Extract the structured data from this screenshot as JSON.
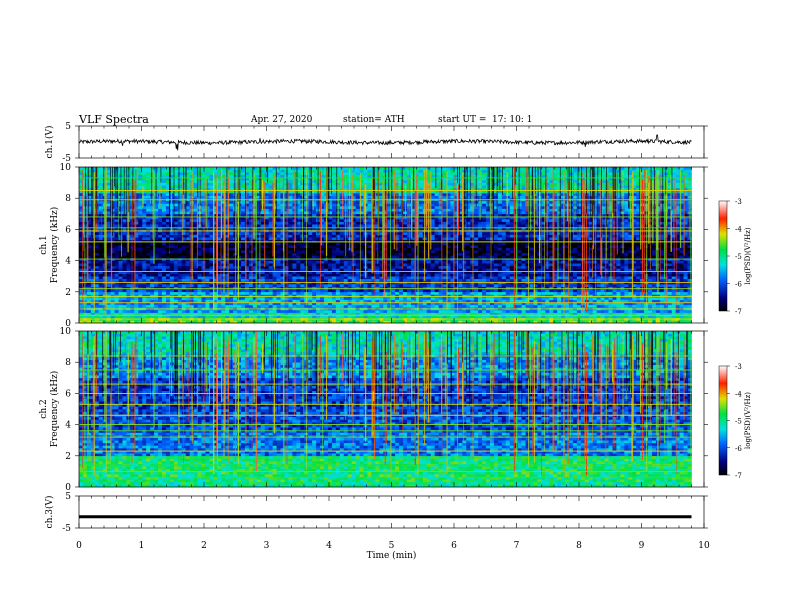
{
  "header": {
    "title": "VLF  Spectra",
    "date": "Apr. 27, 2020",
    "station": "station= ATH",
    "start_ut_label": "start  UT  =",
    "start_ut_value": "17: 10: 1"
  },
  "chart_data": [
    {
      "type": "line",
      "panel": "ch1-waveform",
      "ylabel": "ch.1(V)",
      "ylim": [
        -5,
        5
      ],
      "yticks": [
        5,
        -5
      ],
      "xlim": [
        0,
        10
      ],
      "x_end": 9.8,
      "baseline": 0.0,
      "amplitude_noise": 0.6,
      "spikes": [
        {
          "x": 1.58,
          "y": -2.6
        },
        {
          "x": 1.56,
          "y": -2.2
        },
        {
          "x": 0.7,
          "y": -1.2
        },
        {
          "x": 2.9,
          "y": 1.2
        },
        {
          "x": 8.1,
          "y": -1.5
        },
        {
          "x": 9.1,
          "y": 1.0
        },
        {
          "x": 9.25,
          "y": 2.2
        }
      ]
    },
    {
      "type": "heatmap",
      "panel": "ch1-spectrogram",
      "ylabel": "Frequency (kHz)",
      "channel_label": "ch.1",
      "ylim": [
        0,
        10
      ],
      "yticks": [
        0,
        2,
        4,
        6,
        8,
        10
      ],
      "xlim": [
        0,
        10
      ],
      "x_end": 9.8,
      "colorbar": {
        "label": "log(PSD)(V²/Hz)",
        "min": -7,
        "max": -3,
        "ticks": [
          -3,
          -4,
          -5,
          -6,
          -7
        ]
      },
      "background_levels": [
        {
          "f0": 0.0,
          "f1": 0.3,
          "level": -4.6
        },
        {
          "f0": 0.3,
          "f1": 0.7,
          "level": -5.2
        },
        {
          "f0": 0.7,
          "f1": 2.0,
          "level": -5.6
        },
        {
          "f0": 2.0,
          "f1": 3.0,
          "level": -6.1
        },
        {
          "f0": 3.0,
          "f1": 4.2,
          "level": -6.4
        },
        {
          "f0": 4.2,
          "f1": 5.3,
          "level": -6.8
        },
        {
          "f0": 5.3,
          "f1": 7.0,
          "level": -6.2
        },
        {
          "f0": 7.0,
          "f1": 8.3,
          "level": -5.8
        },
        {
          "f0": 8.3,
          "f1": 10.0,
          "level": -5.2
        }
      ],
      "lines_khz": [
        0.25,
        0.5,
        0.9,
        1.3,
        1.7,
        2.2,
        2.6,
        3.3,
        4.1,
        5.2,
        5.9,
        6.1,
        6.8,
        7.9,
        8.5,
        9.3
      ]
    },
    {
      "type": "heatmap",
      "panel": "ch2-spectrogram",
      "ylabel": "Frequency (kHz)",
      "channel_label": "ch.2",
      "ylim": [
        0,
        10
      ],
      "yticks": [
        0,
        2,
        4,
        6,
        8,
        10
      ],
      "xlim": [
        0,
        10
      ],
      "x_end": 9.8,
      "colorbar": {
        "label": "log(PSD)(V²/Hz)",
        "min": -7,
        "max": -3,
        "ticks": [
          -3,
          -4,
          -5,
          -6,
          -7
        ]
      },
      "background_levels": [
        {
          "f0": 0.0,
          "f1": 0.4,
          "level": -5.0
        },
        {
          "f0": 0.4,
          "f1": 2.0,
          "level": -4.9
        },
        {
          "f0": 2.0,
          "f1": 3.5,
          "level": -5.8
        },
        {
          "f0": 3.5,
          "f1": 5.0,
          "level": -6.0
        },
        {
          "f0": 5.0,
          "f1": 7.0,
          "level": -6.1
        },
        {
          "f0": 7.0,
          "f1": 8.5,
          "level": -5.7
        },
        {
          "f0": 8.5,
          "f1": 10.0,
          "level": -5.2
        }
      ],
      "lines_khz": [
        0.6,
        1.0,
        1.4,
        1.9,
        2.3,
        3.2,
        3.6,
        4.0,
        4.6,
        5.3,
        6.0,
        6.6,
        7.5,
        8.4
      ]
    },
    {
      "type": "line",
      "panel": "ch3-waveform",
      "ylabel": "ch.3(V)",
      "xlabel": "Time  (min)",
      "ylim": [
        -5,
        5
      ],
      "yticks": [
        5,
        -5
      ],
      "xlim": [
        0,
        10
      ],
      "xticks": [
        0,
        1,
        2,
        3,
        4,
        5,
        6,
        7,
        8,
        9,
        10
      ],
      "x_end": 9.8,
      "baseline": -1.5,
      "amplitude_noise": 0.0
    }
  ]
}
